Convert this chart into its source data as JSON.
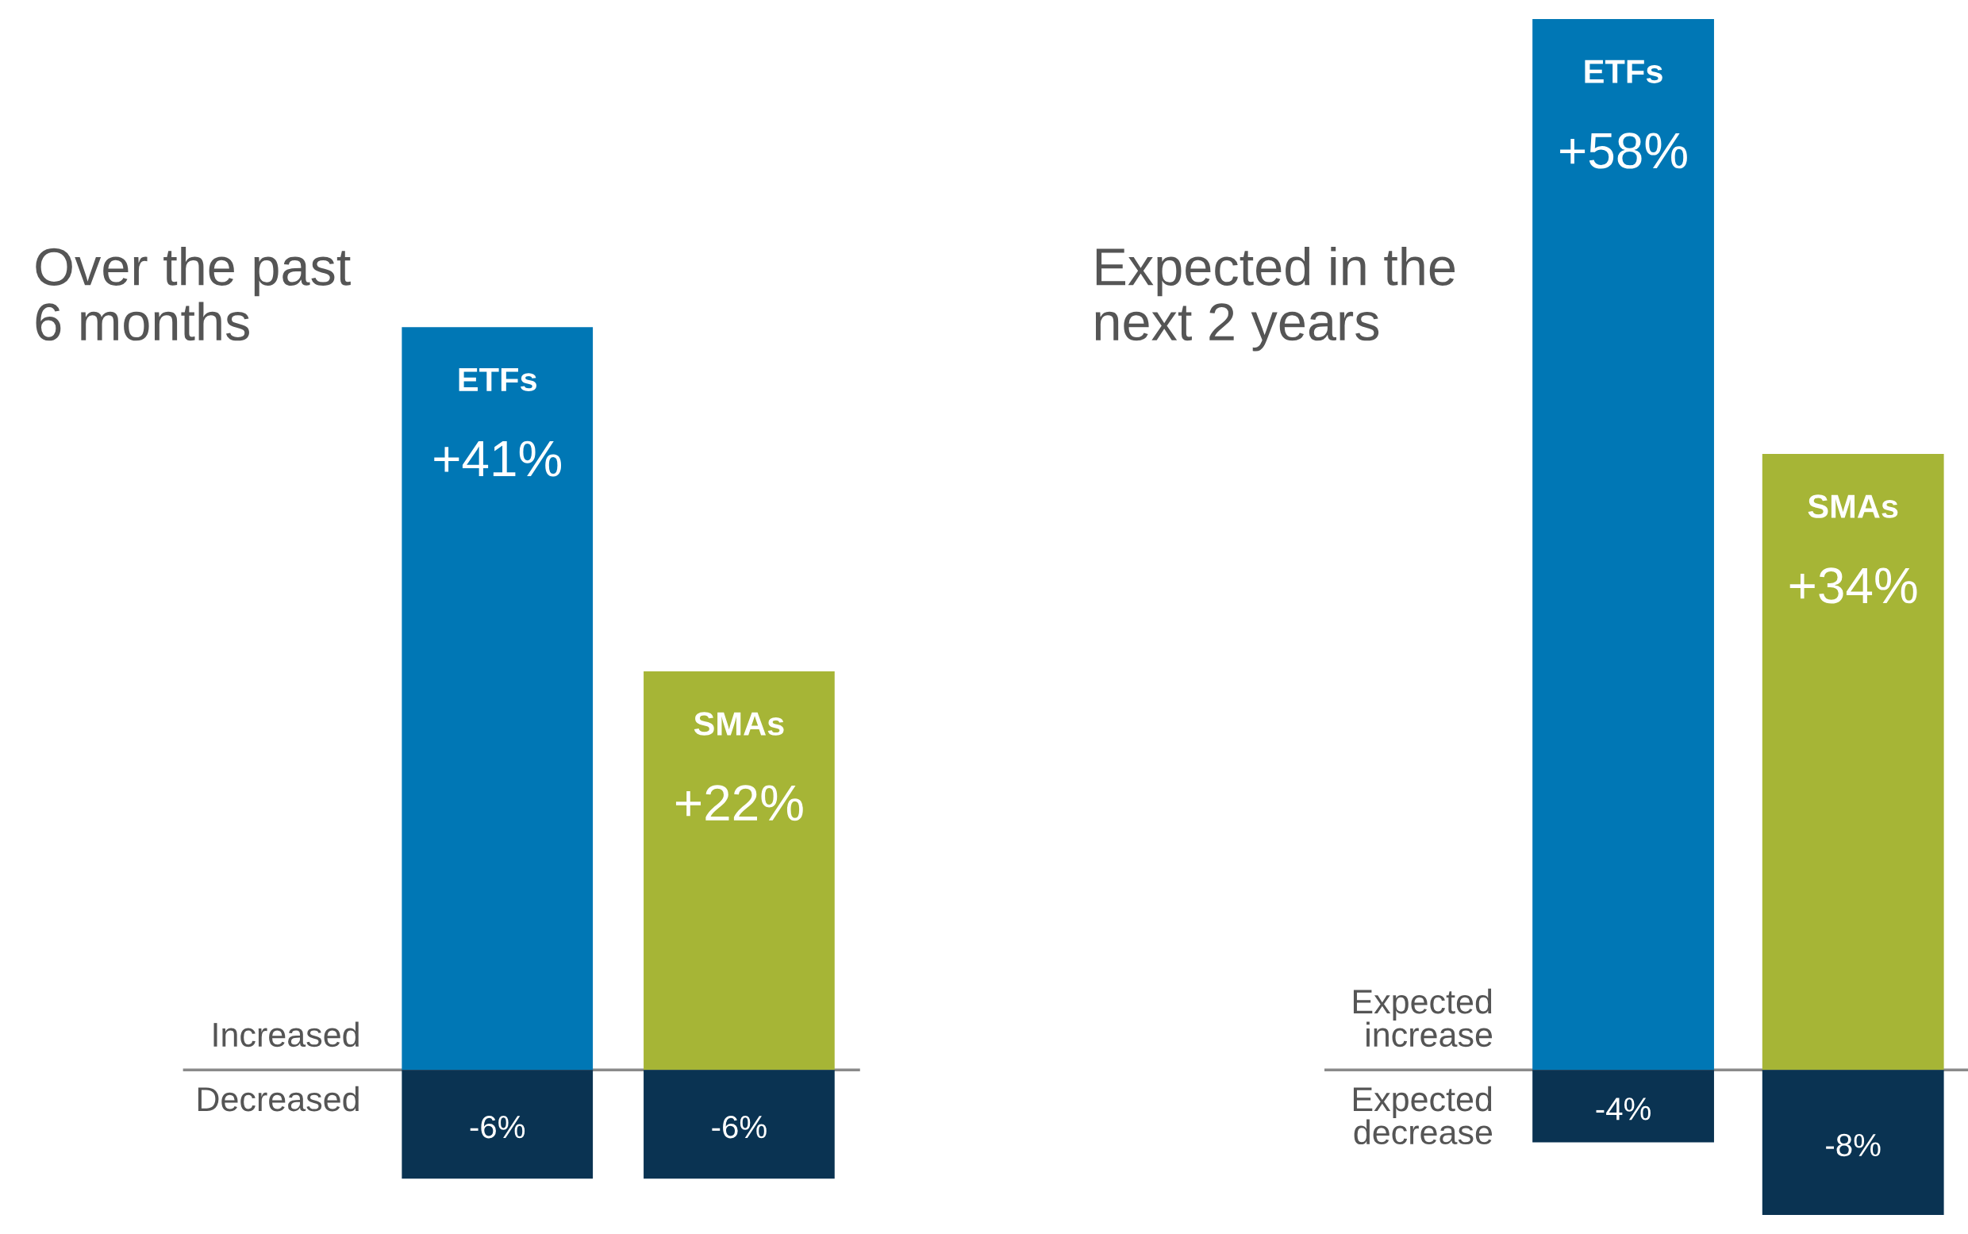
{
  "chart_data": [
    {
      "type": "bar",
      "title": "Over the past\n6 months",
      "categories": [
        "ETFs",
        "SMAs"
      ],
      "stacked": true,
      "series": [
        {
          "name": "Increased",
          "colors": [
            "#0077b5",
            "#a6b536"
          ],
          "values": [
            41,
            22
          ],
          "value_labels": [
            "+41%",
            "+22%"
          ]
        },
        {
          "name": "Decreased",
          "color": "#0a3352",
          "values": [
            -6,
            -6
          ],
          "value_labels": [
            "-6%",
            "-6%"
          ]
        }
      ]
    },
    {
      "type": "bar",
      "title": "Expected in the\nnext 2 years",
      "categories": [
        "ETFs",
        "SMAs"
      ],
      "stacked": true,
      "series": [
        {
          "name": "Expected\nincrease",
          "colors": [
            "#0077b5",
            "#a6b536"
          ],
          "values": [
            58,
            34
          ],
          "value_labels": [
            "+58%",
            "+34%"
          ]
        },
        {
          "name": "Expected\ndecrease",
          "color": "#0a3352",
          "values": [
            -4,
            -8
          ],
          "value_labels": [
            "-4%",
            "-8%"
          ]
        }
      ]
    }
  ]
}
